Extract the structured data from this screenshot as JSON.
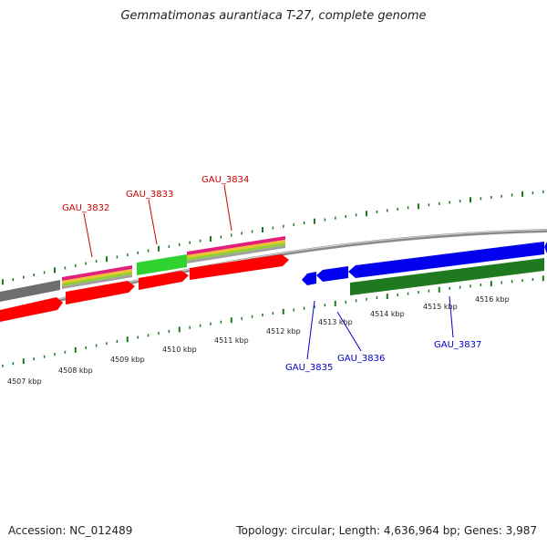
{
  "title": "Gemmatimonas aurantiaca T-27, complete genome",
  "footer": {
    "accession": "Accession: NC_012489",
    "summary": "Topology: circular; Length: 4,636,964 bp; Genes: 3,987"
  },
  "colors": {
    "forward_label": "#cc0000",
    "reverse_label": "#0000cc",
    "tick": "#1a7a1a",
    "backbone": "#888888",
    "red_gene": "#ff0000",
    "blue_gene": "#0000ee",
    "green_gene": "#2fd32f",
    "dark_green_gene": "#1f7a1f",
    "grey_gene": "#6e6e6e"
  },
  "scale_labels": [
    "4507 kbp",
    "4508 kbp",
    "4509 kbp",
    "4510 kbp",
    "4511 kbp",
    "4512 kbp",
    "4513 kbp",
    "4514 kbp",
    "4515 kbp",
    "4516 kbp"
  ],
  "genes_forward": [
    "GAU_3832",
    "GAU_3833",
    "GAU_3834"
  ],
  "genes_reverse": [
    "GAU_3835",
    "GAU_3836",
    "GAU_3837"
  ]
}
